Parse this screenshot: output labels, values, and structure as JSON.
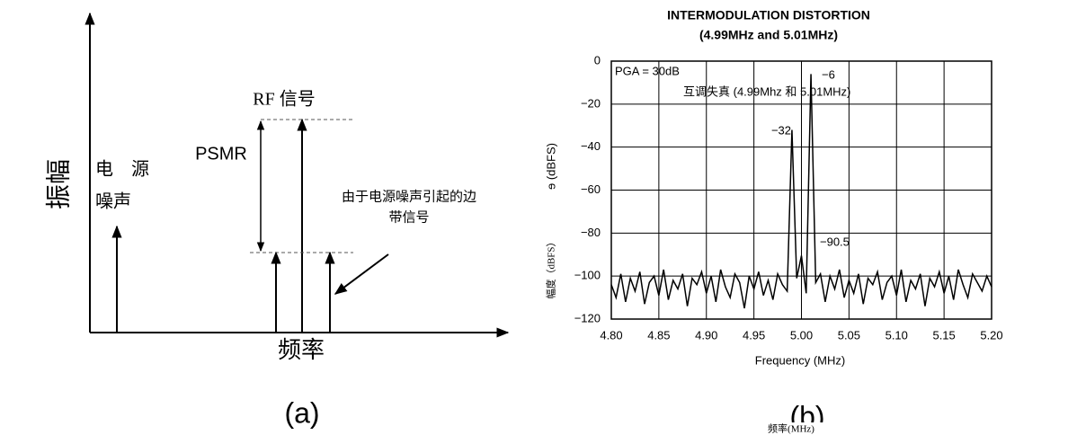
{
  "diagram": {
    "y_axis_label": "振幅",
    "x_axis_label": "频率",
    "noise_label_1": "电　源",
    "noise_label_2": "噪声",
    "rf_label": "RF 信号",
    "psmr_label": "PSMR",
    "sideband_label_1": "由于电源噪声引起的边",
    "sideband_label_2": "带信号",
    "caption": "(a)"
  },
  "chart_data": {
    "type": "line",
    "title": "INTERMODULATION DISTORTION",
    "subtitle": "(4.99MHz and 5.01MHz)",
    "x_label": "Frequency (MHz)",
    "y_label": "ɘ (dBFS)",
    "y_label_overlay": "幅度（dBFS）",
    "x_label_overlay": "频率(MHz)",
    "caption": "(b)",
    "annotations": [
      "PGA = 30dB",
      "互调失真 (4.99Mhz 和 5.01MHz)",
      "−32",
      "−6",
      "−90.5"
    ],
    "color": "#000000",
    "grid": true,
    "xlim": [
      4.8,
      5.2
    ],
    "xticks": [
      {
        "value": 4.8,
        "label": "4.80"
      },
      {
        "value": 4.85,
        "label": "4.85"
      },
      {
        "value": 4.9,
        "label": "4.90"
      },
      {
        "value": 4.95,
        "label": "4.95"
      },
      {
        "value": 5.0,
        "label": "5.00"
      },
      {
        "value": 5.05,
        "label": "5.05"
      },
      {
        "value": 5.1,
        "label": "5.10"
      },
      {
        "value": 5.15,
        "label": "5.15"
      },
      {
        "value": 5.2,
        "label": "5.20"
      }
    ],
    "ylim": [
      -120,
      0
    ],
    "yticks": [
      0,
      {
        "value": -20,
        "label": "−20"
      },
      {
        "value": -40,
        "label": "−40"
      },
      {
        "value": -60,
        "label": "−60"
      },
      {
        "value": -80,
        "label": "−80"
      },
      {
        "value": -100,
        "label": "−100"
      },
      {
        "value": -120,
        "label": "−120"
      }
    ],
    "x": [
      4.8,
      4.805,
      4.81,
      4.815,
      4.82,
      4.825,
      4.83,
      4.835,
      4.84,
      4.845,
      4.85,
      4.855,
      4.86,
      4.865,
      4.87,
      4.875,
      4.88,
      4.885,
      4.89,
      4.895,
      4.9,
      4.905,
      4.91,
      4.915,
      4.92,
      4.925,
      4.93,
      4.935,
      4.94,
      4.945,
      4.95,
      4.955,
      4.96,
      4.965,
      4.97,
      4.975,
      4.98,
      4.985,
      4.99,
      4.995,
      5.0,
      5.005,
      5.01,
      5.015,
      5.02,
      5.025,
      5.03,
      5.035,
      5.04,
      5.045,
      5.05,
      5.055,
      5.06,
      5.065,
      5.07,
      5.075,
      5.08,
      5.085,
      5.09,
      5.095,
      5.1,
      5.105,
      5.11,
      5.115,
      5.12,
      5.125,
      5.13,
      5.135,
      5.14,
      5.145,
      5.15,
      5.155,
      5.16,
      5.165,
      5.17,
      5.175,
      5.18,
      5.185,
      5.19,
      5.195,
      5.2
    ],
    "values": [
      -104,
      -110,
      -99,
      -112,
      -101,
      -107,
      -98,
      -113,
      -103,
      -100,
      -109,
      -97,
      -111,
      -102,
      -106,
      -99,
      -114,
      -101,
      -104,
      -98,
      -108,
      -100,
      -112,
      -97,
      -105,
      -110,
      -99,
      -103,
      -115,
      -100,
      -106,
      -98,
      -109,
      -102,
      -111,
      -99,
      -104,
      -107,
      -32,
      -101,
      -90.5,
      -108,
      -6,
      -103,
      -99,
      -112,
      -100,
      -106,
      -97,
      -110,
      -102,
      -108,
      -99,
      -113,
      -101,
      -104,
      -98,
      -111,
      -103,
      -100,
      -109,
      -97,
      -112,
      -102,
      -106,
      -99,
      -114,
      -101,
      -105,
      -98,
      -108,
      -100,
      -111,
      -97,
      -104,
      -110,
      -99,
      -103,
      -107,
      -100,
      -105
    ]
  }
}
